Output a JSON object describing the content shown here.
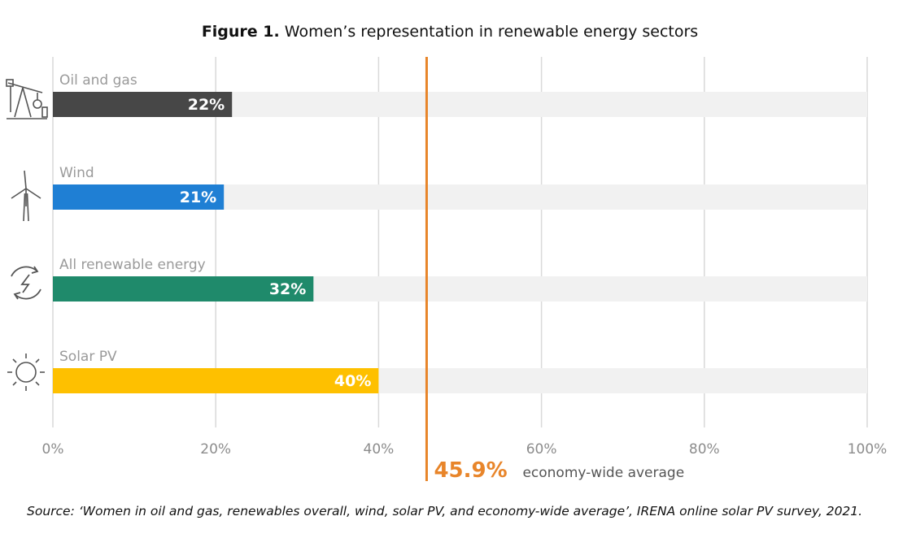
{
  "title": {
    "bold": "Figure 1.",
    "rest": " Women’s representation in renewable energy sectors"
  },
  "source": "Source: ‘Women in oil and gas, renewables overall, wind, solar PV, and economy-wide average’, IRENA online solar PV survey, 2021.",
  "chart_data": {
    "type": "bar",
    "orientation": "horizontal",
    "title": "Women’s representation in renewable energy sectors",
    "categories": [
      "Oil and gas",
      "Wind",
      "All renewable energy",
      "Solar PV"
    ],
    "values": [
      22,
      21,
      32,
      40
    ],
    "value_labels": [
      "22%",
      "21%",
      "32%",
      "40%"
    ],
    "category_icons": [
      "oil-pump-icon",
      "wind-turbine-icon",
      "renewable-cycle-icon",
      "sun-icon"
    ],
    "colors": [
      "#474747",
      "#1f7fd4",
      "#1f8a6b",
      "#fec000"
    ],
    "background_bar_color": "#f1f1f1",
    "xlim": [
      0,
      100
    ],
    "xticks": [
      0,
      20,
      40,
      60,
      80,
      100
    ],
    "xtick_labels": [
      "0%",
      "20%",
      "40%",
      "60%",
      "80%",
      "100%"
    ],
    "grid": true,
    "reference_line": {
      "value": 45.9,
      "label_value": "45.9%",
      "label_text": "economy-wide average",
      "color": "#e8852a"
    }
  }
}
